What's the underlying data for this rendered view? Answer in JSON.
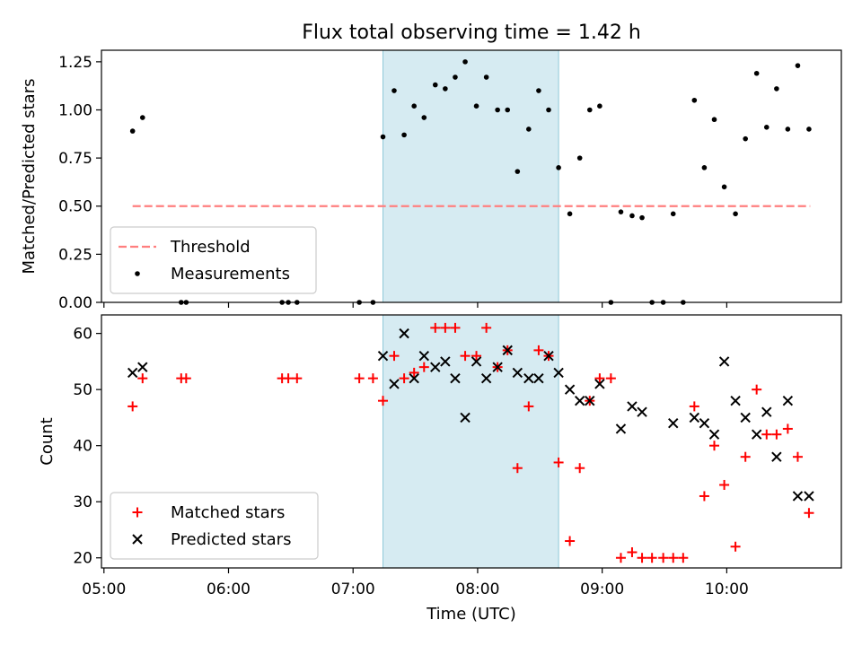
{
  "chart_data": {
    "title": "Flux total observing time = 1.42 h",
    "xlabel": "Time (UTC)",
    "x_ticks": [
      "05:00",
      "06:00",
      "07:00",
      "08:00",
      "09:00",
      "10:00"
    ],
    "x_range_hours": [
      4.98,
      10.92
    ],
    "highlight_span_hours": [
      7.24,
      8.65
    ],
    "highlight_color": "#add8e6",
    "panels": [
      {
        "type": "scatter",
        "ylabel": "Matched/Predicted stars",
        "ylim": [
          0,
          1.31
        ],
        "y_ticks": [
          0.0,
          0.25,
          0.5,
          0.75,
          1.0,
          1.25
        ],
        "y_tick_labels": [
          "0.00",
          "0.25",
          "0.50",
          "0.75",
          "1.00",
          "1.25"
        ],
        "legend_position": "lower-left",
        "threshold": {
          "name": "Threshold",
          "value": 0.5,
          "x_range": [
            5.23,
            10.67
          ],
          "color": "#ff7f7f"
        },
        "series": [
          {
            "name": "Measurements",
            "marker": "dot",
            "color": "#000000",
            "points": [
              [
                5.23,
                0.89
              ],
              [
                5.31,
                0.96
              ],
              [
                5.62,
                0.0
              ],
              [
                5.66,
                0.0
              ],
              [
                6.43,
                0.0
              ],
              [
                6.48,
                0.0
              ],
              [
                6.55,
                0.0
              ],
              [
                7.05,
                0.0
              ],
              [
                7.16,
                0.0
              ],
              [
                7.24,
                0.86
              ],
              [
                7.33,
                1.1
              ],
              [
                7.41,
                0.87
              ],
              [
                7.49,
                1.02
              ],
              [
                7.57,
                0.96
              ],
              [
                7.66,
                1.13
              ],
              [
                7.74,
                1.11
              ],
              [
                7.82,
                1.17
              ],
              [
                7.9,
                1.25
              ],
              [
                7.99,
                1.02
              ],
              [
                8.07,
                1.17
              ],
              [
                8.16,
                1.0
              ],
              [
                8.24,
                1.0
              ],
              [
                8.32,
                0.68
              ],
              [
                8.41,
                0.9
              ],
              [
                8.49,
                1.1
              ],
              [
                8.57,
                1.0
              ],
              [
                8.65,
                0.7
              ],
              [
                8.74,
                0.46
              ],
              [
                8.82,
                0.75
              ],
              [
                8.9,
                1.0
              ],
              [
                8.98,
                1.02
              ],
              [
                9.07,
                0.0
              ],
              [
                9.15,
                0.47
              ],
              [
                9.24,
                0.45
              ],
              [
                9.32,
                0.44
              ],
              [
                9.4,
                0.0
              ],
              [
                9.49,
                0.0
              ],
              [
                9.57,
                0.46
              ],
              [
                9.65,
                0.0
              ],
              [
                9.74,
                1.05
              ],
              [
                9.82,
                0.7
              ],
              [
                9.9,
                0.95
              ],
              [
                9.98,
                0.6
              ],
              [
                10.07,
                0.46
              ],
              [
                10.15,
                0.85
              ],
              [
                10.24,
                1.19
              ],
              [
                10.32,
                0.91
              ],
              [
                10.4,
                1.11
              ],
              [
                10.49,
                0.9
              ],
              [
                10.57,
                1.23
              ],
              [
                10.66,
                0.9
              ]
            ]
          }
        ]
      },
      {
        "type": "scatter",
        "ylabel": "Count",
        "ylim": [
          18.2,
          63.3
        ],
        "y_ticks": [
          20,
          30,
          40,
          50,
          60
        ],
        "y_tick_labels": [
          "20",
          "30",
          "40",
          "50",
          "60"
        ],
        "legend_position": "lower-left",
        "series": [
          {
            "name": "Matched stars",
            "marker": "plus",
            "color": "#ff0000",
            "points": [
              [
                5.23,
                47
              ],
              [
                5.31,
                52
              ],
              [
                5.62,
                52
              ],
              [
                5.66,
                52
              ],
              [
                6.43,
                52
              ],
              [
                6.48,
                52
              ],
              [
                6.55,
                52
              ],
              [
                7.05,
                52
              ],
              [
                7.16,
                52
              ],
              [
                7.24,
                48
              ],
              [
                7.33,
                56
              ],
              [
                7.41,
                52
              ],
              [
                7.49,
                53
              ],
              [
                7.57,
                54
              ],
              [
                7.66,
                61
              ],
              [
                7.74,
                61
              ],
              [
                7.82,
                61
              ],
              [
                7.9,
                56
              ],
              [
                7.99,
                56
              ],
              [
                8.07,
                61
              ],
              [
                8.16,
                54
              ],
              [
                8.24,
                57
              ],
              [
                8.32,
                36
              ],
              [
                8.41,
                47
              ],
              [
                8.49,
                57
              ],
              [
                8.57,
                56
              ],
              [
                8.65,
                37
              ],
              [
                8.74,
                23
              ],
              [
                8.82,
                36
              ],
              [
                8.9,
                48
              ],
              [
                8.98,
                52
              ],
              [
                9.07,
                52
              ],
              [
                9.15,
                20
              ],
              [
                9.24,
                21
              ],
              [
                9.32,
                20
              ],
              [
                9.4,
                20
              ],
              [
                9.49,
                20
              ],
              [
                9.57,
                20
              ],
              [
                9.65,
                20
              ],
              [
                9.74,
                47
              ],
              [
                9.82,
                31
              ],
              [
                9.9,
                40
              ],
              [
                9.98,
                33
              ],
              [
                10.07,
                22
              ],
              [
                10.15,
                38
              ],
              [
                10.24,
                50
              ],
              [
                10.32,
                42
              ],
              [
                10.4,
                42
              ],
              [
                10.49,
                43
              ],
              [
                10.57,
                38
              ],
              [
                10.66,
                28
              ]
            ]
          },
          {
            "name": "Predicted stars",
            "marker": "x",
            "color": "#000000",
            "points": [
              [
                5.23,
                53
              ],
              [
                5.31,
                54
              ],
              [
                7.24,
                56
              ],
              [
                7.33,
                51
              ],
              [
                7.41,
                60
              ],
              [
                7.49,
                52
              ],
              [
                7.57,
                56
              ],
              [
                7.66,
                54
              ],
              [
                7.74,
                55
              ],
              [
                7.82,
                52
              ],
              [
                7.9,
                45
              ],
              [
                7.99,
                55
              ],
              [
                8.07,
                52
              ],
              [
                8.16,
                54
              ],
              [
                8.24,
                57
              ],
              [
                8.32,
                53
              ],
              [
                8.41,
                52
              ],
              [
                8.49,
                52
              ],
              [
                8.57,
                56
              ],
              [
                8.65,
                53
              ],
              [
                8.74,
                50
              ],
              [
                8.82,
                48
              ],
              [
                8.9,
                48
              ],
              [
                8.98,
                51
              ],
              [
                9.15,
                43
              ],
              [
                9.24,
                47
              ],
              [
                9.32,
                46
              ],
              [
                9.57,
                44
              ],
              [
                9.74,
                45
              ],
              [
                9.82,
                44
              ],
              [
                9.9,
                42
              ],
              [
                9.98,
                55
              ],
              [
                10.07,
                48
              ],
              [
                10.15,
                45
              ],
              [
                10.24,
                42
              ],
              [
                10.32,
                46
              ],
              [
                10.4,
                38
              ],
              [
                10.49,
                48
              ],
              [
                10.57,
                31
              ],
              [
                10.66,
                31
              ]
            ]
          }
        ]
      }
    ]
  }
}
